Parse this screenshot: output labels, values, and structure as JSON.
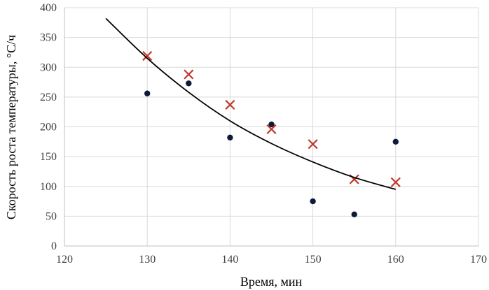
{
  "chart_data": {
    "type": "scatter",
    "title": "",
    "xlabel": "Время, мин",
    "ylabel": "Скорость роста температуры, °С/ч",
    "xlim": [
      120,
      170
    ],
    "ylim": [
      0,
      400
    ],
    "xticks": [
      120,
      130,
      140,
      150,
      160,
      170
    ],
    "yticks": [
      0,
      50,
      100,
      150,
      200,
      250,
      300,
      350,
      400
    ],
    "grid": "vertical and horizontal major gridlines",
    "legend": "none",
    "series": [
      {
        "marker": "circle",
        "color": "#0d1a3a",
        "points": [
          {
            "x": 130,
            "y": 256
          },
          {
            "x": 135,
            "y": 273
          },
          {
            "x": 140,
            "y": 182
          },
          {
            "x": 145,
            "y": 204
          },
          {
            "x": 150,
            "y": 75
          },
          {
            "x": 155,
            "y": 53
          },
          {
            "x": 160,
            "y": 175
          }
        ]
      },
      {
        "marker": "cross",
        "color": "#c0392b",
        "points": [
          {
            "x": 130,
            "y": 319
          },
          {
            "x": 135,
            "y": 288
          },
          {
            "x": 140,
            "y": 237
          },
          {
            "x": 145,
            "y": 196
          },
          {
            "x": 150,
            "y": 171
          },
          {
            "x": 155,
            "y": 112
          },
          {
            "x": 160,
            "y": 107
          }
        ]
      },
      {
        "marker": "line",
        "color": "#000000",
        "points": [
          {
            "x": 125,
            "y": 382
          },
          {
            "x": 130,
            "y": 315
          },
          {
            "x": 135,
            "y": 258
          },
          {
            "x": 140,
            "y": 210
          },
          {
            "x": 145,
            "y": 172
          },
          {
            "x": 150,
            "y": 141
          },
          {
            "x": 155,
            "y": 115
          },
          {
            "x": 160,
            "y": 95
          }
        ]
      }
    ]
  }
}
